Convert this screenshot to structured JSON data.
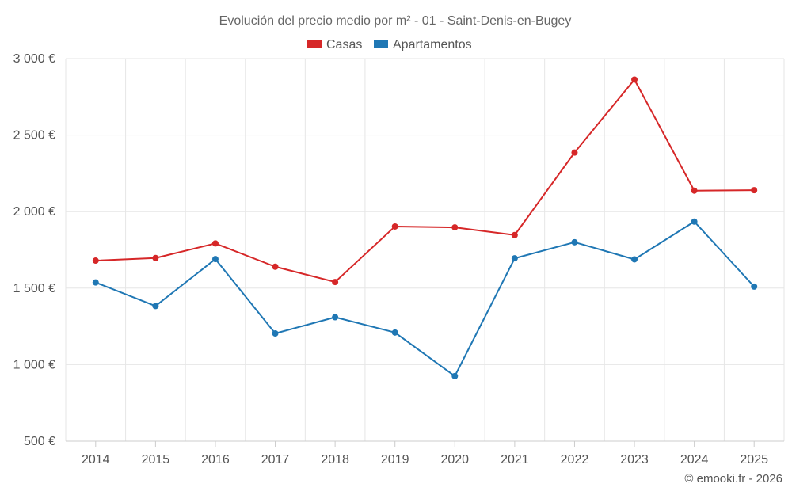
{
  "colors": {
    "casas": "#d62728",
    "apartamentos": "#1f77b4"
  },
  "chart_data": {
    "type": "line",
    "title": "Evolución del precio medio por m² - 01 - Saint-Denis-en-Bugey",
    "categories": [
      "2014",
      "2015",
      "2016",
      "2017",
      "2018",
      "2019",
      "2020",
      "2021",
      "2022",
      "2023",
      "2024",
      "2025"
    ],
    "series": [
      {
        "name": "Casas",
        "color": "#d62728",
        "values": [
          1680,
          1697,
          1792,
          1640,
          1540,
          1903,
          1897,
          1847,
          2386,
          2863,
          2137,
          2140
        ]
      },
      {
        "name": "Apartamentos",
        "color": "#1f77b4",
        "values": [
          1537,
          1383,
          1690,
          1204,
          1310,
          1210,
          925,
          1695,
          1800,
          1688,
          1935,
          1510
        ]
      }
    ],
    "ylim": [
      500,
      3000
    ],
    "yticks": [
      500,
      1000,
      1500,
      2000,
      2500,
      3000
    ],
    "ytick_labels": [
      "500 €",
      "1 000 €",
      "1 500 €",
      "2 000 €",
      "2 500 €",
      "3 000 €"
    ],
    "xlabel": "",
    "ylabel": "",
    "legend": "top-center",
    "grid": true
  },
  "credit": "© emooki.fr - 2026"
}
